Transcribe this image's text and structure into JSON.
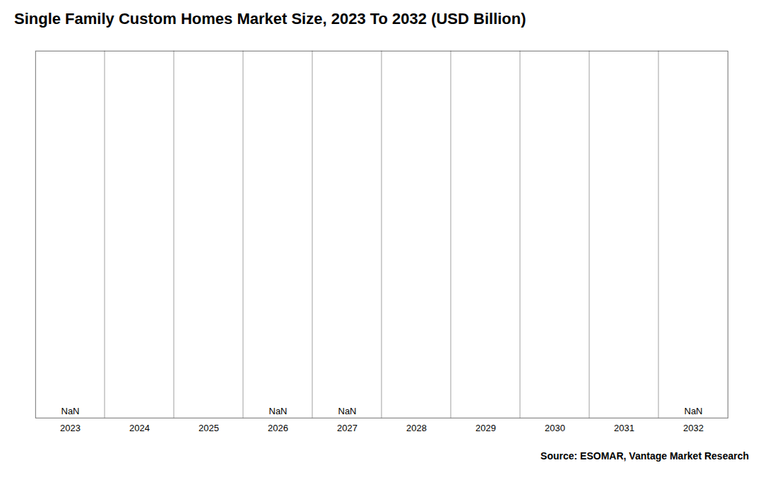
{
  "chart_data": {
    "type": "bar",
    "title": "Single Family Custom Homes Market Size, 2023 To 2032 (USD Billion)",
    "categories": [
      "2023",
      "2024",
      "2025",
      "2026",
      "2027",
      "2028",
      "2029",
      "2030",
      "2031",
      "2032"
    ],
    "values": [
      null,
      null,
      null,
      null,
      null,
      null,
      null,
      null,
      null,
      null
    ],
    "data_labels": true,
    "value_labels": [
      "NaN",
      null,
      null,
      "NaN",
      "NaN",
      null,
      null,
      null,
      null,
      "NaN"
    ],
    "annotations": [
      "Source: ESOMAR, Vantage Market Research"
    ],
    "ylim": [
      0,
      1
    ],
    "tick_labels": "x",
    "grid": true
  }
}
